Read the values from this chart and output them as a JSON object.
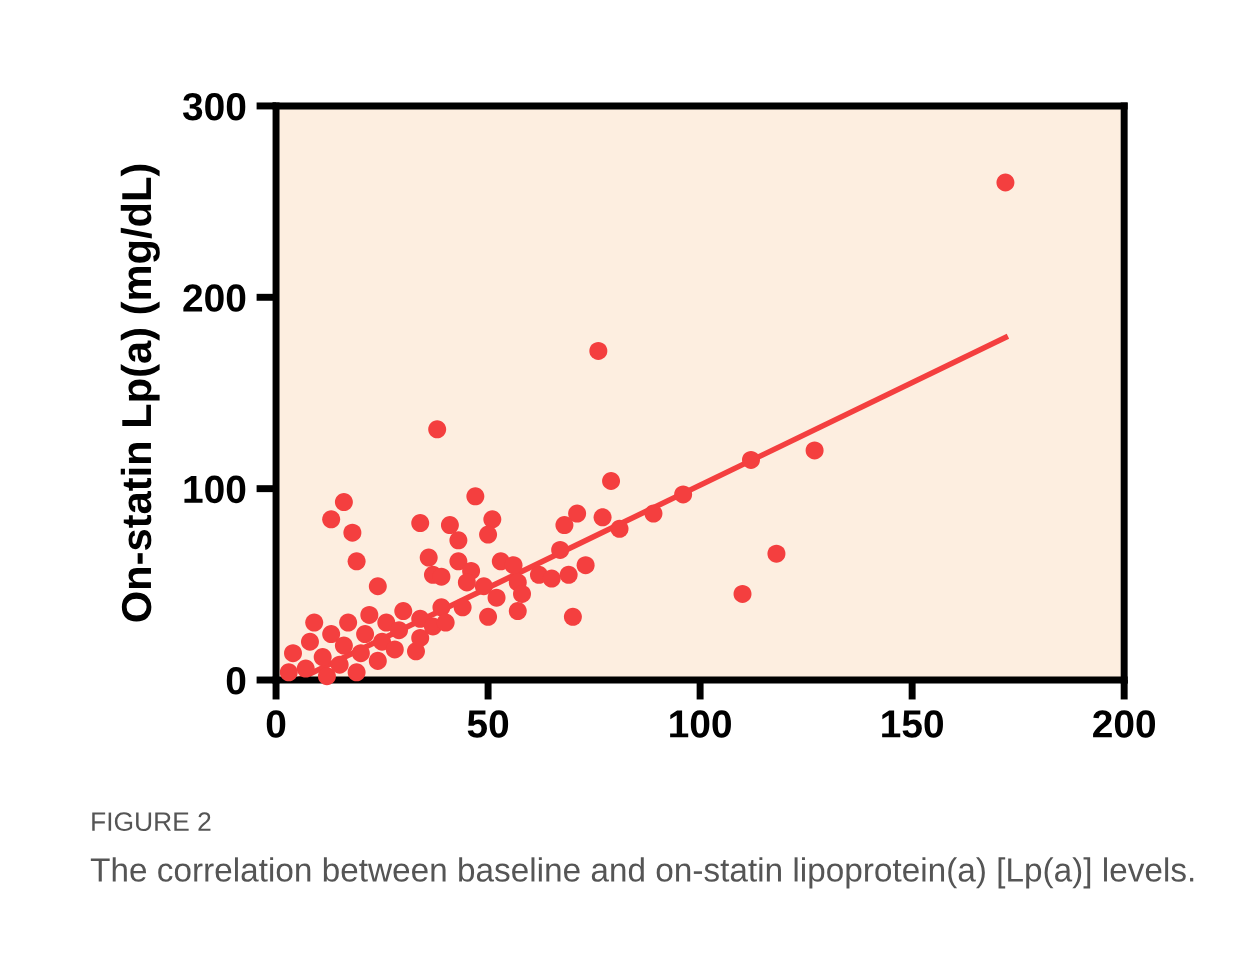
{
  "chart_data": {
    "type": "scatter",
    "ylabel": "On-statin Lp(a) (mg/dL)",
    "annotations": [
      "FIGURE 2",
      "The correlation between baseline and on-statin lipoprotein(a) [Lp(a)] levels."
    ],
    "xlim": [
      0,
      200
    ],
    "ylim": [
      0,
      300
    ],
    "xticks": [
      0,
      50,
      100,
      150,
      200
    ],
    "yticks": [
      0,
      100,
      200,
      300
    ],
    "series": [
      {
        "color": "#f43f3f",
        "marker": "circle",
        "x": [
          172,
          76,
          38,
          127,
          112,
          79,
          96,
          47,
          16,
          13,
          71,
          77,
          89,
          81,
          68,
          51,
          50,
          41,
          43,
          34,
          18,
          118,
          19,
          36,
          43,
          67,
          73,
          53,
          56,
          62,
          65,
          69,
          46,
          37,
          39,
          24,
          57,
          58,
          52,
          110,
          57,
          50,
          70,
          44,
          33,
          9,
          49,
          45,
          3,
          4,
          7,
          8,
          11,
          12,
          13,
          15,
          16,
          17,
          19,
          20,
          21,
          22,
          24,
          25,
          26,
          28,
          29,
          30,
          34,
          34,
          37,
          39,
          40
        ],
        "values": [
          260,
          172,
          131,
          120,
          115,
          104,
          97,
          96,
          93,
          84,
          87,
          85,
          87,
          79,
          81,
          84,
          76,
          81,
          73,
          82,
          77,
          66,
          62,
          64,
          62,
          68,
          60,
          62,
          60,
          55,
          53,
          55,
          57,
          55,
          54,
          49,
          51,
          45,
          43,
          45,
          36,
          33,
          33,
          38,
          15,
          30,
          49,
          51,
          4,
          14,
          6,
          20,
          12,
          2,
          24,
          8,
          18,
          30,
          4,
          14,
          24,
          34,
          10,
          20,
          30,
          16,
          26,
          36,
          22,
          32,
          28,
          38,
          30
        ]
      },
      {
        "type": "line",
        "color": "#f43f3f",
        "line_style": "solid",
        "x": [
          5,
          172
        ],
        "values": [
          0,
          179
        ]
      }
    ]
  }
}
